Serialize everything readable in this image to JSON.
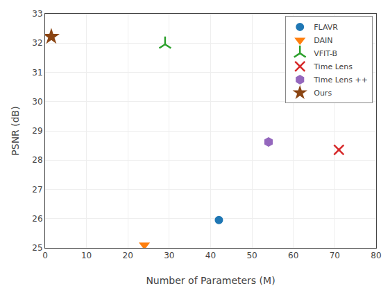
{
  "chart_data": {
    "type": "scatter",
    "xlabel": "Number of Parameters (M)",
    "ylabel": "PSNR (dB)",
    "xlim": [
      0,
      80
    ],
    "ylim": [
      25,
      33
    ],
    "xticks": [
      0,
      10,
      20,
      30,
      40,
      50,
      60,
      70,
      80
    ],
    "yticks": [
      25,
      26,
      27,
      28,
      29,
      30,
      31,
      32,
      33
    ],
    "grid": true,
    "legend": "upper right",
    "series": [
      {
        "name": "FLAVR",
        "color": "#1f77b4",
        "marker": "circle",
        "x": [
          42
        ],
        "values": [
          25.95
        ]
      },
      {
        "name": "DAIN",
        "color": "#ff7f0e",
        "marker": "triangle-down",
        "x": [
          24
        ],
        "values": [
          25.1
        ]
      },
      {
        "name": "VFIT-B",
        "color": "#2ca02c",
        "marker": "y",
        "x": [
          29
        ],
        "values": [
          31.96
        ]
      },
      {
        "name": "Time Lens",
        "color": "#d62728",
        "marker": "x",
        "x": [
          71
        ],
        "values": [
          28.35
        ]
      },
      {
        "name": "Time Lens ++",
        "color": "#9467bd",
        "marker": "hexagon",
        "x": [
          54
        ],
        "values": [
          28.62
        ]
      },
      {
        "name": "Ours",
        "color": "#8B4513",
        "marker": "star",
        "x": [
          1.5
        ],
        "values": [
          32.22
        ]
      }
    ]
  }
}
